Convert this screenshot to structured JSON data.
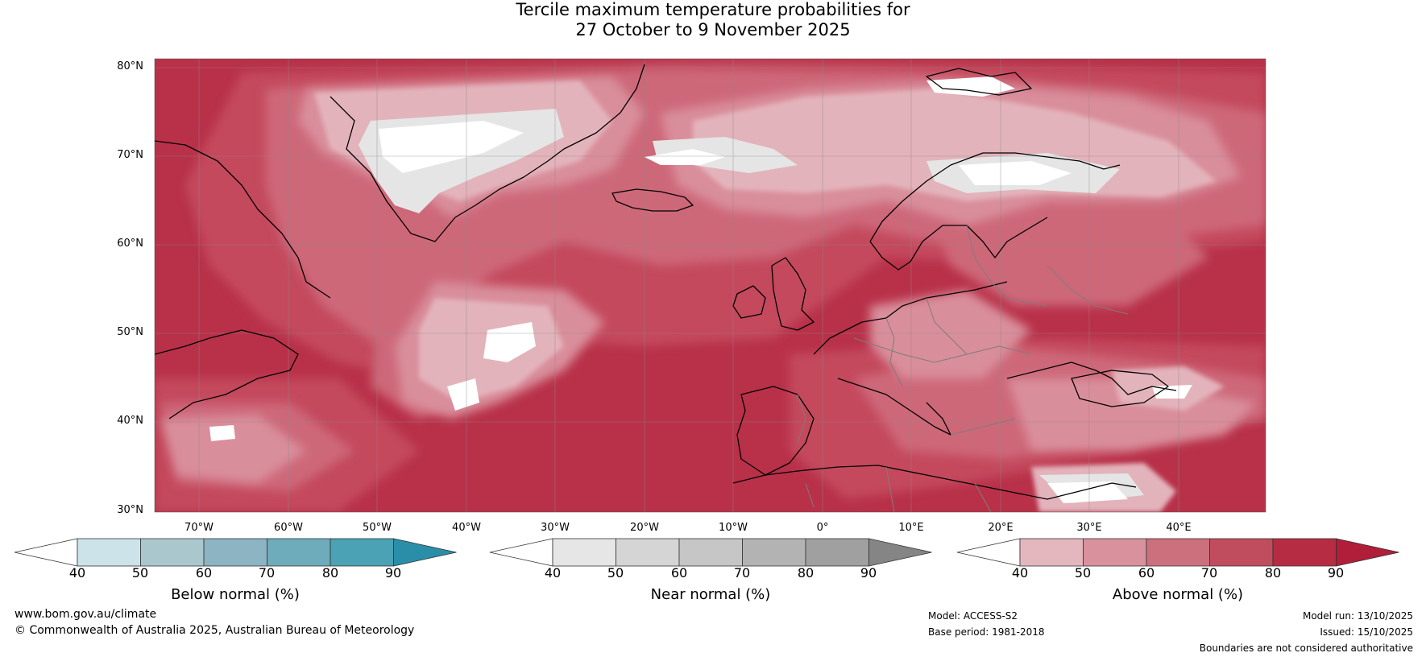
{
  "title": {
    "line1": "Tercile maximum temperature probabilities for",
    "line2": "27 October to 9 November 2025"
  },
  "latitude_labels": [
    "80°N",
    "70°N",
    "60°N",
    "50°N",
    "40°N",
    "30°N"
  ],
  "longitude_labels": [
    "70°W",
    "60°W",
    "50°W",
    "40°W",
    "30°W",
    "20°W",
    "10°W",
    "0°",
    "10°E",
    "20°E",
    "30°E",
    "40°E"
  ],
  "colorbars": [
    {
      "label": "Below normal (%)",
      "ticks": [
        "40",
        "50",
        "60",
        "70",
        "80",
        "90"
      ],
      "colors": [
        "#ffffff",
        "#cde3ea",
        "#abc7ce",
        "#8cb4c2",
        "#6eabbb",
        "#4aa2b4",
        "#2a8ea8"
      ]
    },
    {
      "label": "Near normal (%)",
      "ticks": [
        "40",
        "50",
        "60",
        "70",
        "80",
        "90"
      ],
      "colors": [
        "#ffffff",
        "#e6e6e6",
        "#d5d5d5",
        "#c6c6c6",
        "#b3b3b3",
        "#a0a0a0",
        "#858585"
      ]
    },
    {
      "label": "Above normal (%)",
      "ticks": [
        "40",
        "50",
        "60",
        "70",
        "80",
        "90"
      ],
      "colors": [
        "#ffffff",
        "#e4b7bf",
        "#d9929d",
        "#cc707e",
        "#c04d5e",
        "#b62c43",
        "#b01e3a"
      ]
    }
  ],
  "footer": {
    "website": "www.bom.gov.au/climate",
    "copyright": "© Commonwealth of Australia 2025, Australian Bureau of Meteorology",
    "model": "Model: ACCESS-S2",
    "base_period": "Base period: 1981-2018",
    "model_run": "Model run: 13/10/2025",
    "issued": "Issued: 15/10/2025",
    "disclaimer": "Boundaries are not considered authoritative"
  },
  "map_colors": {
    "above_90": "#b01e3a",
    "above_80": "#bd3c52",
    "above_70": "#cc6778",
    "above_60": "#d98b98",
    "above_50": "#e4b4bc",
    "near_50": "#e6e6e6",
    "white": "#ffffff",
    "coast": "#000000",
    "border": "#808080",
    "grid": "#999999"
  }
}
